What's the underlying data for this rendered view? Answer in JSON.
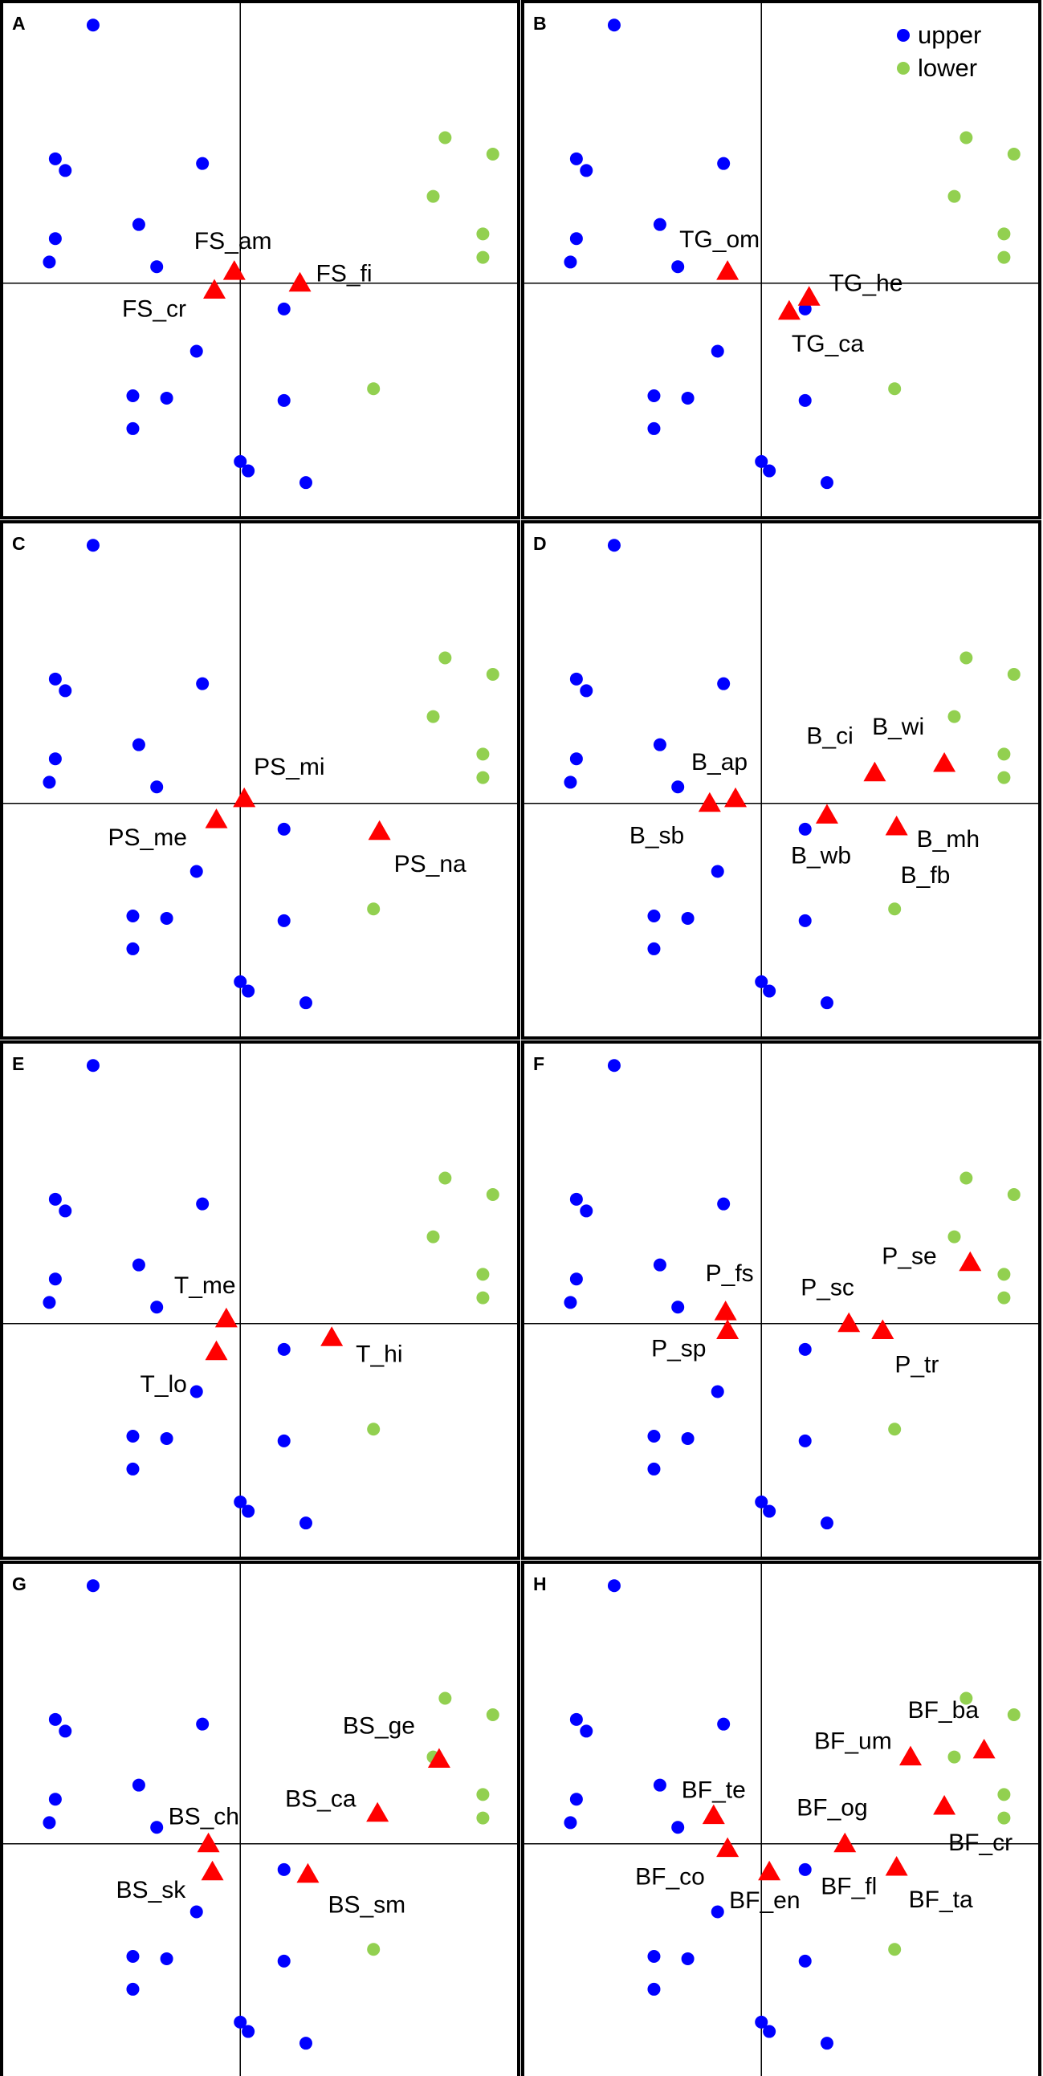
{
  "chart_data": {
    "type": "scatter",
    "legend": {
      "placement": "top-right",
      "entries": [
        {
          "label": "upper",
          "color": "#0000ff"
        },
        {
          "label": "lower",
          "color": "#92d050"
        }
      ]
    },
    "colors": {
      "upper": "#0000ff",
      "lower": "#92d050",
      "triangle": "#ff0000",
      "axes": "#000000"
    },
    "xlim": [
      -1.2,
      1.4
    ],
    "ylim": [
      -1.0,
      1.2
    ],
    "sites": {
      "upper": [
        {
          "x": -0.74,
          "y": 1.1
        },
        {
          "x": -0.93,
          "y": 0.53
        },
        {
          "x": -0.88,
          "y": 0.48
        },
        {
          "x": -0.19,
          "y": 0.51
        },
        {
          "x": -0.51,
          "y": 0.25
        },
        {
          "x": -0.93,
          "y": 0.19
        },
        {
          "x": -0.96,
          "y": 0.09
        },
        {
          "x": -0.42,
          "y": 0.07
        },
        {
          "x": 0.22,
          "y": -0.11
        },
        {
          "x": -0.22,
          "y": -0.29
        },
        {
          "x": -0.54,
          "y": -0.48
        },
        {
          "x": -0.37,
          "y": -0.49
        },
        {
          "x": 0.22,
          "y": -0.5
        },
        {
          "x": -0.54,
          "y": -0.62
        },
        {
          "x": 0.0,
          "y": -0.76
        },
        {
          "x": 0.04,
          "y": -0.8
        },
        {
          "x": 0.33,
          "y": -0.85
        }
      ],
      "lower": [
        {
          "x": 1.03,
          "y": 0.62
        },
        {
          "x": 1.27,
          "y": 0.55
        },
        {
          "x": 0.97,
          "y": 0.37
        },
        {
          "x": 1.22,
          "y": 0.21
        },
        {
          "x": 1.22,
          "y": 0.11
        },
        {
          "x": 0.67,
          "y": -0.45
        }
      ]
    },
    "panels": [
      {
        "letter": "A",
        "points": [
          {
            "label": "FS_am",
            "x": -0.03,
            "y": 0.05
          },
          {
            "label": "FS_cr",
            "x": -0.13,
            "y": -0.03
          },
          {
            "label": "FS_fi",
            "x": 0.3,
            "y": 0.0
          }
        ]
      },
      {
        "letter": "B",
        "points": [
          {
            "label": "TG_om",
            "x": -0.17,
            "y": 0.05
          },
          {
            "label": "TG_he",
            "x": 0.24,
            "y": -0.06
          },
          {
            "label": "TG_ca",
            "x": 0.14,
            "y": -0.12
          }
        ]
      },
      {
        "letter": "C",
        "points": [
          {
            "label": "PS_mi",
            "x": 0.02,
            "y": 0.02
          },
          {
            "label": "PS_me",
            "x": -0.12,
            "y": -0.07
          },
          {
            "label": "PS_na",
            "x": 0.7,
            "y": -0.12
          }
        ]
      },
      {
        "letter": "D",
        "points": [
          {
            "label": "B_ap",
            "x": -0.13,
            "y": 0.02
          },
          {
            "label": "B_sb",
            "x": -0.26,
            "y": 0.0
          },
          {
            "label": "B_ci",
            "x": 0.57,
            "y": 0.13
          },
          {
            "label": "B_wi",
            "x": 0.92,
            "y": 0.17
          },
          {
            "label": "B_wb",
            "x": 0.33,
            "y": -0.05
          },
          {
            "label": "B_mh",
            "x": 0.68,
            "y": -0.1
          },
          {
            "label": "B_fb",
            "x": 0.68,
            "y": -0.1
          }
        ]
      },
      {
        "letter": "E",
        "points": [
          {
            "label": "T_me",
            "x": -0.07,
            "y": 0.02
          },
          {
            "label": "T_lo",
            "x": -0.12,
            "y": -0.12
          },
          {
            "label": "T_hi",
            "x": 0.46,
            "y": -0.06
          }
        ]
      },
      {
        "letter": "F",
        "points": [
          {
            "label": "P_fs",
            "x": -0.18,
            "y": 0.05
          },
          {
            "label": "P_sp",
            "x": -0.17,
            "y": -0.03
          },
          {
            "label": "P_sc",
            "x": 0.44,
            "y": 0.0
          },
          {
            "label": "P_tr",
            "x": 0.61,
            "y": -0.03
          },
          {
            "label": "P_se",
            "x": 1.05,
            "y": 0.26
          }
        ]
      },
      {
        "letter": "G",
        "points": [
          {
            "label": "BS_ch",
            "x": -0.16,
            "y": 0.0
          },
          {
            "label": "BS_sk",
            "x": -0.14,
            "y": -0.12
          },
          {
            "label": "BS_sm",
            "x": 0.34,
            "y": -0.13
          },
          {
            "label": "BS_ca",
            "x": 0.69,
            "y": 0.13
          },
          {
            "label": "BS_ge",
            "x": 1.0,
            "y": 0.36
          }
        ]
      },
      {
        "letter": "H",
        "points": [
          {
            "label": "BF_te",
            "x": -0.24,
            "y": 0.12
          },
          {
            "label": "BF_co",
            "x": -0.17,
            "y": -0.02
          },
          {
            "label": "BF_en",
            "x": 0.04,
            "y": -0.12
          },
          {
            "label": "BF_og",
            "x": 0.42,
            "y": 0.0
          },
          {
            "label": "BF_fl",
            "x": 0.42,
            "y": 0.0
          },
          {
            "label": "BF_um",
            "x": 0.75,
            "y": 0.37
          },
          {
            "label": "BF_ba",
            "x": 1.12,
            "y": 0.4
          },
          {
            "label": "BF_cr",
            "x": 0.92,
            "y": 0.16
          },
          {
            "label": "BF_ta",
            "x": 0.68,
            "y": -0.1
          }
        ]
      }
    ]
  }
}
